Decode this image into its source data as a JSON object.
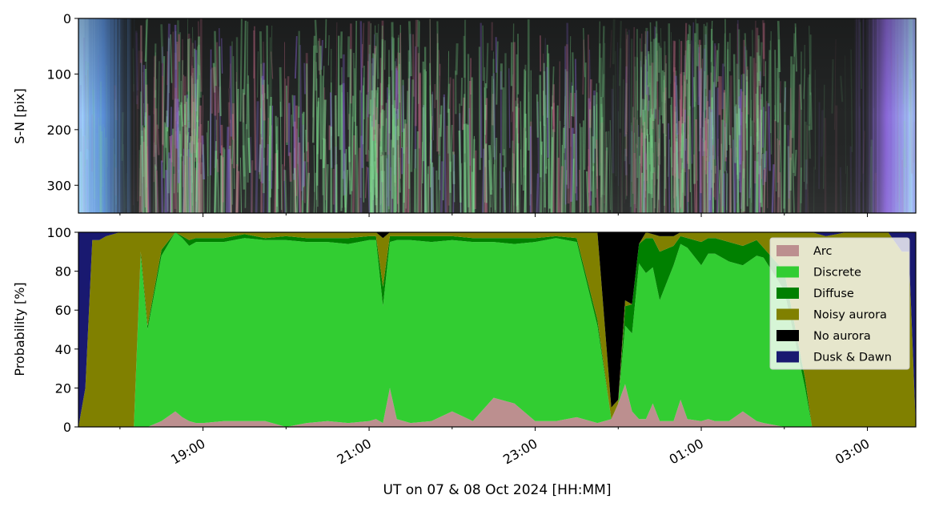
{
  "chart_data": [
    {
      "type": "heatmap",
      "title": "",
      "ylabel": "S-N [pix]",
      "yticks": [
        "0",
        "100",
        "200",
        "300"
      ],
      "ylim": [
        350,
        0
      ],
      "x_time_range": [
        "2024-10-07 17:30",
        "2024-10-08 03:35"
      ],
      "description_source": "all-sky keogram (colour image)",
      "colors": {
        "dusk_dawn_edge": "#a8d8ff",
        "twilight_blue": "#5a8fd8",
        "purple_haze": "#8a68d8",
        "dark_sky": "#242626",
        "aurora_green": "#7fe090",
        "aurora_pink": "#c06b86"
      }
    },
    {
      "type": "area",
      "stacked": true,
      "ylabel": "Probability [%]",
      "xlabel": "UT on 07 & 08 Oct 2024 [HH:MM]",
      "ylim": [
        0,
        100
      ],
      "yticks": [
        "0",
        "20",
        "40",
        "60",
        "80",
        "100"
      ],
      "xticks": [
        "19:00",
        "21:00",
        "23:00",
        "01:00",
        "03:00"
      ],
      "xlim": [
        "2024-10-07 17:30",
        "2024-10-08 03:35"
      ],
      "legend_position": "top-right",
      "x": [
        "17:30",
        "17:35",
        "17:40",
        "17:45",
        "17:50",
        "18:00",
        "18:10",
        "18:15",
        "18:20",
        "18:30",
        "18:40",
        "18:45",
        "18:50",
        "18:55",
        "19:00",
        "19:15",
        "19:30",
        "19:45",
        "20:00",
        "20:15",
        "20:30",
        "20:45",
        "21:00",
        "21:05",
        "21:10",
        "21:15",
        "21:20",
        "21:30",
        "21:45",
        "22:00",
        "22:15",
        "22:30",
        "22:45",
        "23:00",
        "23:15",
        "23:30",
        "23:45",
        "23:55",
        "00:00",
        "00:05",
        "00:10",
        "00:15",
        "00:20",
        "00:25",
        "00:30",
        "00:40",
        "00:45",
        "00:50",
        "01:00",
        "01:05",
        "01:10",
        "01:20",
        "01:30",
        "01:40",
        "01:45",
        "02:00",
        "02:15",
        "02:20",
        "02:30",
        "02:45",
        "03:00",
        "03:15",
        "03:25",
        "03:30",
        "03:35"
      ],
      "series": [
        {
          "name": "Arc",
          "color": "#bc8f8f",
          "values": [
            0,
            0,
            0,
            0,
            0,
            0,
            0,
            0,
            0,
            3,
            8,
            5,
            3,
            2,
            2,
            3,
            3,
            3,
            0,
            2,
            3,
            2,
            3,
            4,
            2,
            20,
            4,
            2,
            3,
            8,
            3,
            15,
            12,
            3,
            3,
            5,
            2,
            4,
            12,
            22,
            8,
            4,
            4,
            12,
            3,
            3,
            14,
            4,
            3,
            4,
            3,
            3,
            8,
            3,
            2,
            0,
            0,
            0,
            0,
            0,
            0,
            0,
            0,
            0,
            0
          ]
        },
        {
          "name": "Discrete",
          "color": "#32cd32",
          "values": [
            0,
            0,
            0,
            0,
            0,
            0,
            0,
            88,
            50,
            85,
            92,
            92,
            90,
            93,
            93,
            92,
            94,
            93,
            96,
            93,
            92,
            92,
            93,
            92,
            60,
            75,
            92,
            94,
            92,
            88,
            92,
            80,
            82,
            92,
            94,
            90,
            50,
            0,
            0,
            30,
            40,
            80,
            75,
            70,
            62,
            80,
            80,
            88,
            80,
            85,
            86,
            82,
            75,
            85,
            85,
            70,
            20,
            0,
            0,
            0,
            0,
            0,
            0,
            0,
            0
          ]
        },
        {
          "name": "Diffuse",
          "color": "#008000",
          "values": [
            0,
            0,
            0,
            0,
            0,
            0,
            0,
            2,
            2,
            3,
            0,
            1,
            3,
            2,
            2,
            2,
            2,
            1,
            2,
            2,
            2,
            3,
            2,
            2,
            10,
            3,
            2,
            2,
            3,
            2,
            2,
            2,
            3,
            2,
            1,
            2,
            3,
            0,
            0,
            10,
            15,
            10,
            18,
            15,
            25,
            10,
            4,
            5,
            12,
            8,
            8,
            10,
            10,
            8,
            5,
            10,
            5,
            0,
            0,
            0,
            0,
            0,
            0,
            0,
            0
          ]
        },
        {
          "name": "Noisy aurora",
          "color": "#808000",
          "values": [
            0,
            20,
            96,
            96,
            98,
            100,
            100,
            10,
            48,
            9,
            0,
            2,
            4,
            3,
            3,
            3,
            1,
            3,
            2,
            3,
            3,
            3,
            2,
            2,
            25,
            2,
            2,
            2,
            2,
            2,
            3,
            3,
            3,
            3,
            2,
            3,
            45,
            6,
            2,
            3,
            0,
            0,
            3,
            2,
            8,
            5,
            2,
            3,
            5,
            3,
            3,
            5,
            7,
            4,
            8,
            20,
            75,
            100,
            98,
            100,
            100,
            100,
            90,
            90,
            0
          ],
          "note": ""
        },
        {
          "name": "No aurora",
          "color": "#000000",
          "values": [
            0,
            0,
            0,
            0,
            0,
            0,
            0,
            0,
            0,
            0,
            0,
            0,
            0,
            0,
            0,
            0,
            0,
            0,
            0,
            0,
            0,
            0,
            0,
            0,
            3,
            0,
            0,
            0,
            0,
            0,
            0,
            0,
            0,
            0,
            0,
            0,
            0,
            90,
            86,
            35,
            37,
            6,
            0,
            1,
            2,
            2,
            0,
            0,
            0,
            0,
            0,
            0,
            0,
            0,
            0,
            0,
            0,
            0,
            0,
            0,
            0,
            0,
            0,
            0,
            0
          ]
        },
        {
          "name": "Dusk & Dawn",
          "color": "#191970",
          "values": [
            100,
            80,
            4,
            4,
            2,
            0,
            0,
            0,
            0,
            0,
            0,
            0,
            0,
            0,
            0,
            0,
            0,
            0,
            0,
            0,
            0,
            0,
            0,
            0,
            0,
            0,
            0,
            0,
            0,
            0,
            0,
            0,
            0,
            0,
            0,
            0,
            0,
            0,
            0,
            0,
            0,
            0,
            0,
            0,
            0,
            0,
            0,
            0,
            0,
            0,
            0,
            0,
            0,
            0,
            0,
            0,
            0,
            0,
            2,
            0,
            0,
            0,
            10,
            10,
            100
          ]
        }
      ]
    }
  ]
}
